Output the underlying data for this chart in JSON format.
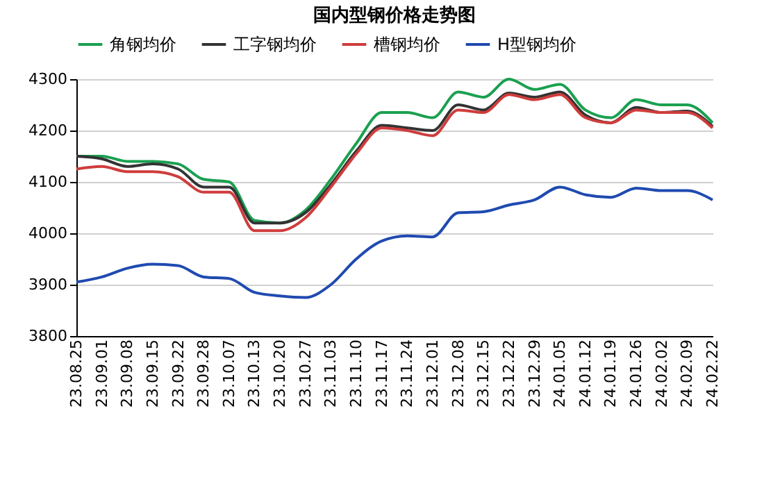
{
  "chart_data": {
    "type": "line",
    "title": "国内型钢价格走势图",
    "categories": [
      "23.08.25",
      "23.09.01",
      "23.09.08",
      "23.09.15",
      "23.09.22",
      "23.09.28",
      "23.10.07",
      "23.10.13",
      "23.10.20",
      "23.10.27",
      "23.11.03",
      "23.11.10",
      "23.11.17",
      "23.11.24",
      "23.12.01",
      "23.12.08",
      "23.12.15",
      "23.12.22",
      "23.12.29",
      "24.01.05",
      "24.01.12",
      "24.01.19",
      "24.01.26",
      "24.02.02",
      "24.02.09",
      "24.02.22"
    ],
    "series": [
      {
        "name": "角钢均价",
        "color": "#1aa050",
        "values": [
          4150,
          4150,
          4140,
          4140,
          4135,
          4105,
          4100,
          4025,
          4020,
          4045,
          4105,
          4175,
          4235,
          4235,
          4225,
          4275,
          4265,
          4300,
          4280,
          4290,
          4240,
          4225,
          4260,
          4250,
          4250,
          4215
        ]
      },
      {
        "name": "工字钢均价",
        "color": "#333333",
        "values": [
          4150,
          4145,
          4130,
          4135,
          4125,
          4090,
          4090,
          4020,
          4020,
          4040,
          4095,
          4160,
          4210,
          4205,
          4200,
          4250,
          4240,
          4273,
          4265,
          4275,
          4230,
          4215,
          4245,
          4235,
          4238,
          4208
        ]
      },
      {
        "name": "槽钢均价",
        "color": "#d03c3c",
        "values": [
          4125,
          4130,
          4120,
          4120,
          4110,
          4080,
          4080,
          4005,
          4005,
          4030,
          4090,
          4155,
          4205,
          4200,
          4190,
          4240,
          4235,
          4270,
          4260,
          4270,
          4225,
          4215,
          4240,
          4235,
          4235,
          4205
        ]
      },
      {
        "name": "H型钢均价",
        "color": "#1f4ab0",
        "values": [
          3905,
          3915,
          3932,
          3940,
          3937,
          3915,
          3912,
          3885,
          3878,
          3875,
          3900,
          3950,
          3985,
          3995,
          3993,
          4040,
          4042,
          4055,
          4065,
          4090,
          4075,
          4070,
          4088,
          4083,
          4083,
          4065
        ]
      }
    ],
    "ylim": [
      3800,
      4300
    ],
    "yticks": [
      3800,
      3900,
      4000,
      4100,
      4200,
      4300
    ],
    "grid": "y",
    "legend": "top",
    "marker": "none",
    "line_style": "solid"
  }
}
